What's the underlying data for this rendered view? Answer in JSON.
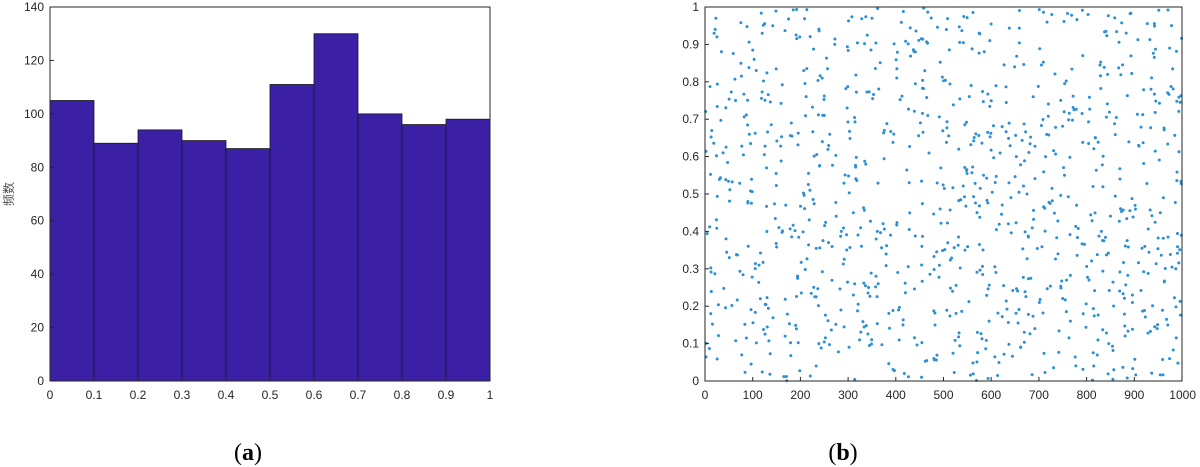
{
  "chart_data": [
    {
      "type": "bar",
      "panel_label": "a",
      "ylabel": "频数",
      "bin_edges": [
        0,
        0.1,
        0.2,
        0.3,
        0.4,
        0.5,
        0.6,
        0.7,
        0.8,
        0.9,
        1.0
      ],
      "values": [
        105,
        89,
        94,
        90,
        87,
        111,
        130,
        100,
        96,
        98
      ],
      "xlim": [
        0,
        1
      ],
      "ylim": [
        0,
        140
      ],
      "xticks": [
        "0",
        "0.1",
        "0.2",
        "0.3",
        "0.4",
        "0.5",
        "0.6",
        "0.7",
        "0.8",
        "0.9",
        "1"
      ],
      "yticks": [
        "0",
        "20",
        "40",
        "60",
        "80",
        "100",
        "120",
        "140"
      ],
      "bar_color": "#3b20a5"
    },
    {
      "type": "scatter",
      "panel_label": "b",
      "xlim": [
        0,
        1000
      ],
      "ylim": [
        0,
        1
      ],
      "xticks": [
        "0",
        "100",
        "200",
        "300",
        "400",
        "500",
        "600",
        "700",
        "800",
        "900",
        "1000"
      ],
      "yticks": [
        "0",
        "0.1",
        "0.2",
        "0.3",
        "0.4",
        "0.5",
        "0.6",
        "0.7",
        "0.8",
        "0.9",
        "1"
      ],
      "point_color": "#2a8fd4",
      "n_points": 1000,
      "points": [
        [
          12,
          0.18
        ],
        [
          25,
          0.92
        ],
        [
          38,
          0.61
        ],
        [
          51,
          0.33
        ],
        [
          64,
          0.75
        ],
        [
          77,
          0.07
        ],
        [
          90,
          0.48
        ],
        [
          103,
          0.86
        ],
        [
          116,
          0.22
        ],
        [
          129,
          0.57
        ],
        [
          142,
          0.95
        ],
        [
          155,
          0.41
        ],
        [
          168,
          0.12
        ],
        [
          181,
          0.69
        ],
        [
          194,
          0.28
        ],
        [
          207,
          0.83
        ],
        [
          220,
          0.51
        ],
        [
          233,
          0.04
        ],
        [
          246,
          0.64
        ],
        [
          259,
          0.37
        ],
        [
          272,
          0.9
        ],
        [
          285,
          0.19
        ],
        [
          298,
          0.73
        ],
        [
          311,
          0.45
        ],
        [
          324,
          0.11
        ],
        [
          337,
          0.58
        ],
        [
          350,
          0.97
        ],
        [
          363,
          0.26
        ],
        [
          376,
          0.67
        ],
        [
          389,
          0.39
        ],
        [
          402,
          0.81
        ],
        [
          415,
          0.15
        ],
        [
          428,
          0.53
        ],
        [
          441,
          0.88
        ],
        [
          454,
          0.31
        ],
        [
          467,
          0.71
        ],
        [
          480,
          0.06
        ],
        [
          493,
          0.46
        ],
        [
          506,
          0.94
        ],
        [
          519,
          0.24
        ],
        [
          532,
          0.62
        ],
        [
          545,
          0.35
        ],
        [
          558,
          0.79
        ],
        [
          571,
          0.13
        ],
        [
          584,
          0.55
        ],
        [
          597,
          0.91
        ],
        [
          610,
          0.29
        ],
        [
          623,
          0.68
        ],
        [
          636,
          0.42
        ],
        [
          649,
          0.84
        ],
        [
          662,
          0.09
        ],
        [
          675,
          0.5
        ],
        [
          688,
          0.76
        ],
        [
          701,
          0.21
        ],
        [
          714,
          0.6
        ],
        [
          727,
          0.98
        ],
        [
          740,
          0.34
        ],
        [
          753,
          0.72
        ],
        [
          766,
          0.16
        ],
        [
          779,
          0.47
        ],
        [
          792,
          0.87
        ],
        [
          805,
          0.27
        ],
        [
          818,
          0.65
        ],
        [
          831,
          0.4
        ],
        [
          844,
          0.82
        ],
        [
          857,
          0.03
        ],
        [
          870,
          0.54
        ],
        [
          883,
          0.93
        ],
        [
          896,
          0.23
        ],
        [
          909,
          0.63
        ],
        [
          922,
          0.36
        ],
        [
          935,
          0.78
        ],
        [
          948,
          0.14
        ],
        [
          961,
          0.49
        ],
        [
          974,
          0.89
        ],
        [
          987,
          0.3
        ]
      ]
    }
  ],
  "captions": {
    "a": "a",
    "b": "b"
  }
}
